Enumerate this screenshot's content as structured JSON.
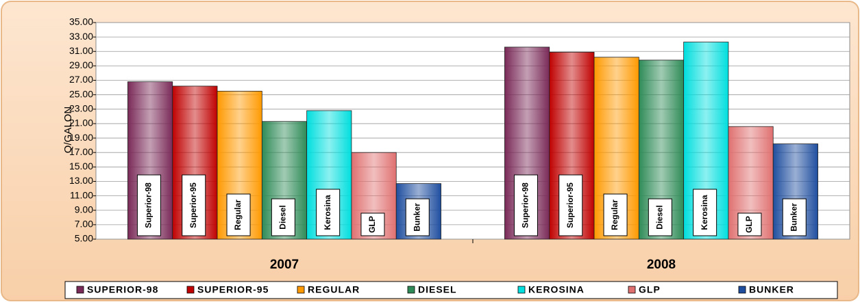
{
  "chart_data": {
    "type": "bar",
    "y_label": "Q/GALON",
    "categories": [
      "2007",
      "2008"
    ],
    "bar_labels": [
      "Superior-98",
      "Superior-95",
      "Regular",
      "Diesel",
      "Kerosina",
      "GLP",
      "Bunker"
    ],
    "series": [
      {
        "name": "SUPERIOR-98",
        "color": "#7a2a58",
        "values": [
          26.8,
          31.6
        ]
      },
      {
        "name": "SUPERIOR-95",
        "color": "#c00000",
        "values": [
          26.2,
          30.9
        ]
      },
      {
        "name": "REGULAR",
        "color": "#ff9900",
        "values": [
          25.5,
          30.2
        ]
      },
      {
        "name": "DIESEL",
        "color": "#2e8b57",
        "values": [
          21.3,
          29.8
        ]
      },
      {
        "name": "KEROSINA",
        "color": "#00dede",
        "values": [
          22.8,
          32.3
        ]
      },
      {
        "name": "GLP",
        "color": "#e07070",
        "values": [
          17.0,
          20.6
        ]
      },
      {
        "name": "BUNKER",
        "color": "#1f4e9f",
        "values": [
          12.7,
          18.2
        ]
      }
    ],
    "ylim": [
      5,
      35
    ],
    "yticks": [
      {
        "value": 5,
        "label": "5.00"
      },
      {
        "value": 7,
        "label": "7.00"
      },
      {
        "value": 9,
        "label": "9.00"
      },
      {
        "value": 11,
        "label": "11.00"
      },
      {
        "value": 13,
        "label": "13.00"
      },
      {
        "value": 15,
        "label": "15.00"
      },
      {
        "value": 17,
        "label": "17.00"
      },
      {
        "value": 19,
        "label": "19.00"
      },
      {
        "value": 21,
        "label": "21.00"
      },
      {
        "value": 23,
        "label": "23.00"
      },
      {
        "value": 25,
        "label": "25.00"
      },
      {
        "value": 27,
        "label": "27.00"
      },
      {
        "value": 29,
        "label": "29.00"
      },
      {
        "value": 31,
        "label": "31.00"
      },
      {
        "value": 33,
        "label": "33.00"
      },
      {
        "value": 35,
        "label": "35.00"
      }
    ],
    "grid": true,
    "legend": "bottom"
  }
}
